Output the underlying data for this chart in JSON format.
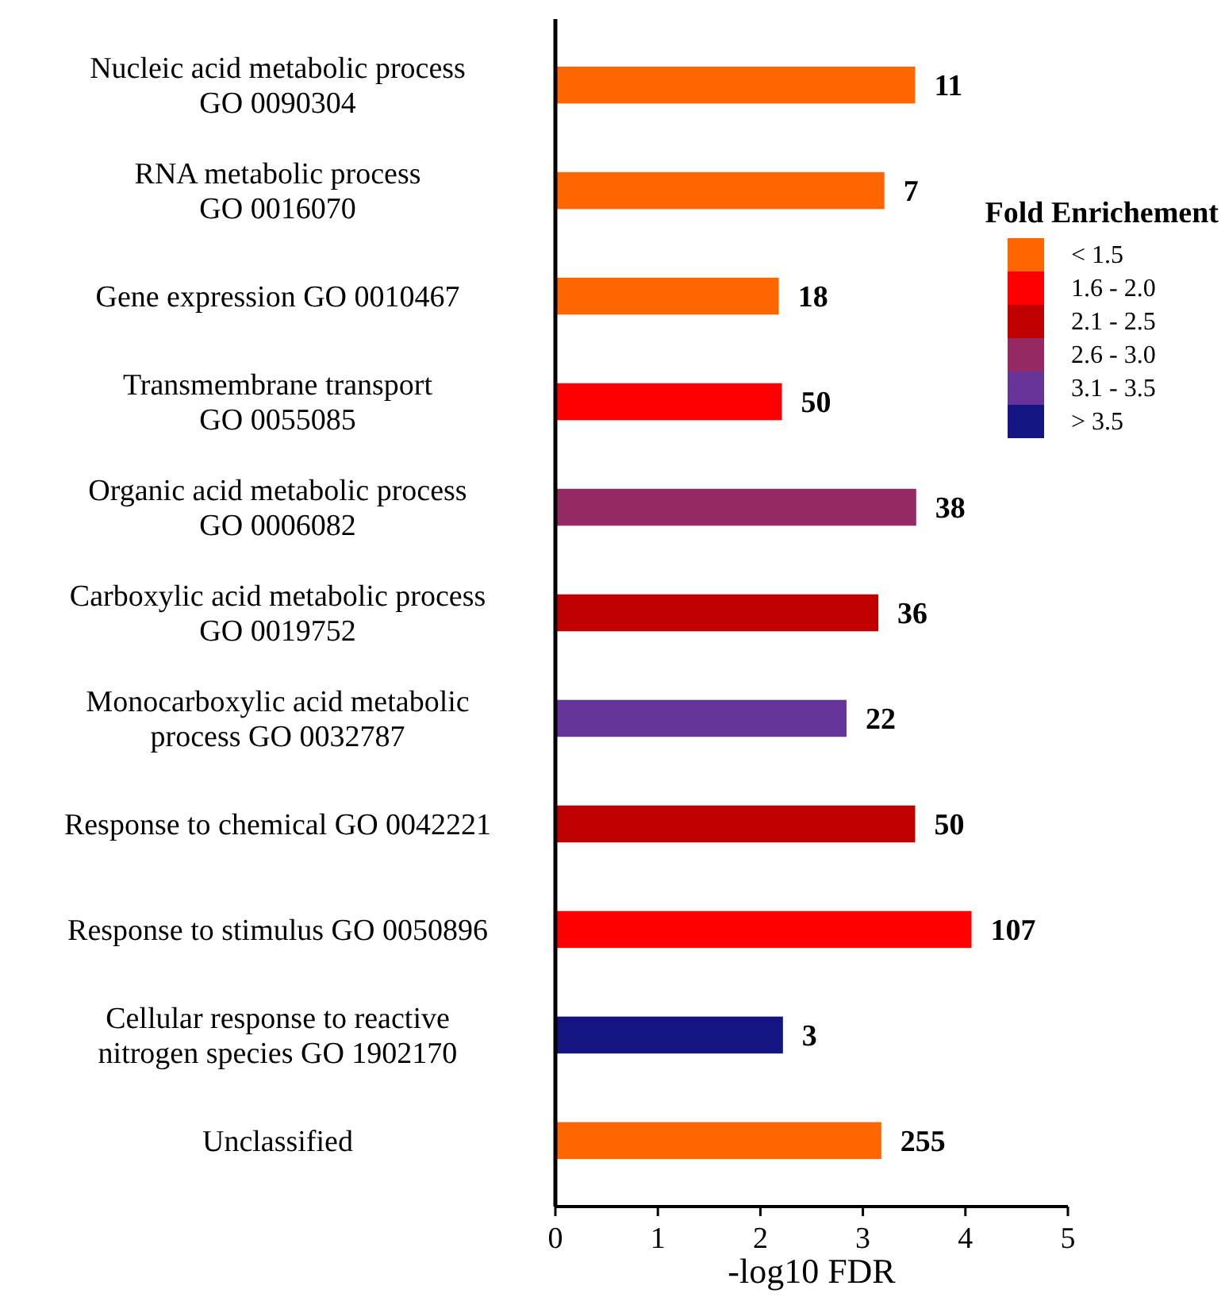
{
  "chart_data": {
    "type": "bar",
    "orientation": "horizontal",
    "xlabel": "-log10 FDR",
    "legend_title": "Fold Enrichement",
    "legend": "right",
    "xlim": [
      0,
      5
    ],
    "xticks": [
      0,
      1,
      2,
      3,
      4,
      5
    ],
    "categories": [
      "Nucleic acid metabolic process\nGO 0090304",
      "RNA metabolic process\nGO 0016070",
      "Gene expression GO 0010467",
      "Transmembrane transport\nGO 0055085",
      "Organic acid metabolic process\nGO 0006082",
      "Carboxylic acid metabolic process\nGO 0019752",
      "Monocarboxylic acid metabolic\nprocess GO 0032787",
      "Response to chemical GO 0042221",
      "Response to stimulus GO 0050896",
      "Cellular response to reactive\nnitrogen species GO 1902170",
      "Unclassified"
    ],
    "series": [
      {
        "name": "< 1.5",
        "color": "#ff6600",
        "values": [
          3.51,
          3.21,
          2.18,
          null,
          null,
          null,
          null,
          null,
          null,
          null,
          3.18
        ]
      },
      {
        "name": "1.6 - 2.0",
        "color": "#ff0000",
        "values": [
          null,
          null,
          null,
          2.21,
          null,
          null,
          null,
          null,
          4.06,
          null,
          null
        ]
      },
      {
        "name": "2.1 - 2.5",
        "color": "#c00000",
        "values": [
          null,
          null,
          null,
          null,
          null,
          3.15,
          null,
          3.51,
          null,
          null,
          null
        ]
      },
      {
        "name": "2.6 - 3.0",
        "color": "#952963",
        "values": [
          null,
          null,
          null,
          null,
          3.52,
          null,
          null,
          null,
          null,
          null,
          null
        ]
      },
      {
        "name": "3.1 - 3.5",
        "color": "#663399",
        "values": [
          null,
          null,
          null,
          null,
          null,
          null,
          2.84,
          null,
          null,
          null,
          null
        ]
      },
      {
        "name": "> 3.5",
        "color": "#141482",
        "values": [
          null,
          null,
          null,
          null,
          null,
          null,
          null,
          null,
          null,
          2.22,
          null
        ]
      }
    ],
    "annotations": [
      {
        "text": "11",
        "x": 3.51,
        "y": "Nucleic acid metabolic process\nGO 0090304"
      },
      {
        "text": "7",
        "x": 3.21,
        "y": "RNA metabolic process\nGO 0016070"
      },
      {
        "text": "18",
        "x": 2.18,
        "y": "Gene expression GO 0010467"
      },
      {
        "text": "50",
        "x": 2.21,
        "y": "Transmembrane transport\nGO 0055085"
      },
      {
        "text": "38",
        "x": 3.52,
        "y": "Organic acid metabolic process\nGO 0006082"
      },
      {
        "text": "36",
        "x": 3.15,
        "y": "Carboxylic acid metabolic process\nGO 0019752"
      },
      {
        "text": "22",
        "x": 2.84,
        "y": "Monocarboxylic acid metabolic\nprocess GO 0032787"
      },
      {
        "text": "50",
        "x": 3.51,
        "y": "Response to chemical GO 0042221"
      },
      {
        "text": "107",
        "x": 4.06,
        "y": "Response to stimulus GO 0050896"
      },
      {
        "text": "3",
        "x": 2.22,
        "y": "Cellular response to reactive\nnitrogen species GO 1902170"
      },
      {
        "text": "255",
        "x": 3.18,
        "y": "Unclassified"
      }
    ]
  }
}
